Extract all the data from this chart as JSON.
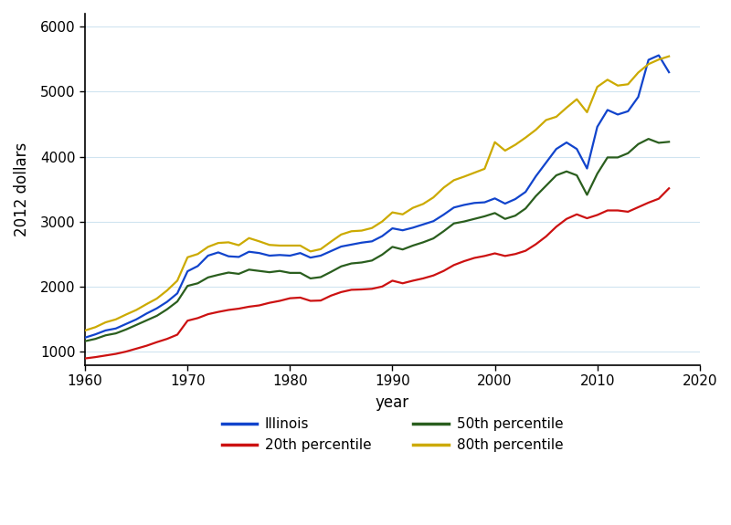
{
  "title": "",
  "xlabel": "year",
  "ylabel": "2012 dollars",
  "xlim": [
    1960,
    2020
  ],
  "ylim": [
    800,
    6200
  ],
  "yticks": [
    1000,
    2000,
    3000,
    4000,
    5000,
    6000
  ],
  "xticks": [
    1960,
    1970,
    1980,
    1990,
    2000,
    2010,
    2020
  ],
  "series_order": [
    "Illinois",
    "20th percentile",
    "50th percentile",
    "80th percentile"
  ],
  "series": {
    "Illinois": {
      "color": "#1144cc",
      "linewidth": 1.6,
      "years": [
        1960,
        1961,
        1962,
        1963,
        1964,
        1965,
        1966,
        1967,
        1968,
        1969,
        1970,
        1971,
        1972,
        1973,
        1974,
        1975,
        1976,
        1977,
        1978,
        1979,
        1980,
        1981,
        1982,
        1983,
        1984,
        1985,
        1986,
        1987,
        1988,
        1989,
        1990,
        1991,
        1992,
        1993,
        1994,
        1995,
        1996,
        1997,
        1998,
        1999,
        2000,
        2001,
        2002,
        2003,
        2004,
        2005,
        2006,
        2007,
        2008,
        2009,
        2010,
        2011,
        2012,
        2013,
        2014,
        2015,
        2016,
        2017
      ],
      "values": [
        1220,
        1270,
        1330,
        1360,
        1430,
        1500,
        1590,
        1670,
        1770,
        1900,
        2240,
        2320,
        2480,
        2530,
        2470,
        2460,
        2540,
        2520,
        2480,
        2490,
        2480,
        2520,
        2450,
        2480,
        2550,
        2620,
        2650,
        2680,
        2700,
        2780,
        2900,
        2870,
        2910,
        2960,
        3010,
        3110,
        3220,
        3260,
        3290,
        3300,
        3360,
        3280,
        3350,
        3460,
        3700,
        3910,
        4120,
        4220,
        4120,
        3820,
        4460,
        4720,
        4650,
        4700,
        4920,
        5490,
        5560,
        5300
      ]
    },
    "20th percentile": {
      "color": "#cc1111",
      "linewidth": 1.6,
      "years": [
        1960,
        1961,
        1962,
        1963,
        1964,
        1965,
        1966,
        1967,
        1968,
        1969,
        1970,
        1971,
        1972,
        1973,
        1974,
        1975,
        1976,
        1977,
        1978,
        1979,
        1980,
        1981,
        1982,
        1983,
        1984,
        1985,
        1986,
        1987,
        1988,
        1989,
        1990,
        1991,
        1992,
        1993,
        1994,
        1995,
        1996,
        1997,
        1998,
        1999,
        2000,
        2001,
        2002,
        2003,
        2004,
        2005,
        2006,
        2007,
        2008,
        2009,
        2010,
        2011,
        2012,
        2013,
        2014,
        2015,
        2016,
        2017
      ],
      "values": [
        900,
        920,
        945,
        970,
        1005,
        1050,
        1095,
        1150,
        1200,
        1265,
        1480,
        1520,
        1580,
        1615,
        1645,
        1665,
        1695,
        1715,
        1755,
        1785,
        1825,
        1835,
        1785,
        1790,
        1865,
        1920,
        1955,
        1960,
        1970,
        2005,
        2095,
        2055,
        2095,
        2130,
        2175,
        2245,
        2335,
        2395,
        2445,
        2475,
        2515,
        2475,
        2505,
        2555,
        2655,
        2775,
        2925,
        3045,
        3115,
        3055,
        3105,
        3175,
        3175,
        3155,
        3225,
        3295,
        3355,
        3515
      ]
    },
    "50th percentile": {
      "color": "#2a5e1e",
      "linewidth": 1.6,
      "years": [
        1960,
        1961,
        1962,
        1963,
        1964,
        1965,
        1966,
        1967,
        1968,
        1969,
        1970,
        1971,
        1972,
        1973,
        1974,
        1975,
        1976,
        1977,
        1978,
        1979,
        1980,
        1981,
        1982,
        1983,
        1984,
        1985,
        1986,
        1987,
        1988,
        1989,
        1990,
        1991,
        1992,
        1993,
        1994,
        1995,
        1996,
        1997,
        1998,
        1999,
        2000,
        2001,
        2002,
        2003,
        2004,
        2005,
        2006,
        2007,
        2008,
        2009,
        2010,
        2011,
        2012,
        2013,
        2014,
        2015,
        2016,
        2017
      ],
      "values": [
        1165,
        1200,
        1255,
        1285,
        1345,
        1415,
        1485,
        1555,
        1655,
        1775,
        2015,
        2055,
        2145,
        2185,
        2220,
        2200,
        2265,
        2245,
        2225,
        2245,
        2215,
        2215,
        2130,
        2150,
        2230,
        2315,
        2360,
        2375,
        2405,
        2495,
        2615,
        2575,
        2635,
        2685,
        2745,
        2855,
        2975,
        3005,
        3045,
        3085,
        3135,
        3045,
        3095,
        3205,
        3395,
        3555,
        3715,
        3775,
        3715,
        3415,
        3740,
        3990,
        3990,
        4055,
        4195,
        4275,
        4215,
        4230
      ]
    },
    "80th percentile": {
      "color": "#ccaa00",
      "linewidth": 1.6,
      "years": [
        1960,
        1961,
        1962,
        1963,
        1964,
        1965,
        1966,
        1967,
        1968,
        1969,
        1970,
        1971,
        1972,
        1973,
        1974,
        1975,
        1976,
        1977,
        1978,
        1979,
        1980,
        1981,
        1982,
        1983,
        1984,
        1985,
        1986,
        1987,
        1988,
        1989,
        1990,
        1991,
        1992,
        1993,
        1994,
        1995,
        1996,
        1997,
        1998,
        1999,
        2000,
        2001,
        2002,
        2003,
        2004,
        2005,
        2006,
        2007,
        2008,
        2009,
        2010,
        2011,
        2012,
        2013,
        2014,
        2015,
        2016,
        2017
      ],
      "values": [
        1330,
        1380,
        1455,
        1500,
        1575,
        1645,
        1735,
        1820,
        1945,
        2095,
        2455,
        2505,
        2615,
        2675,
        2685,
        2640,
        2750,
        2700,
        2645,
        2635,
        2635,
        2635,
        2545,
        2580,
        2695,
        2805,
        2855,
        2865,
        2905,
        3005,
        3145,
        3115,
        3215,
        3275,
        3375,
        3525,
        3640,
        3695,
        3755,
        3815,
        4225,
        4095,
        4185,
        4295,
        4415,
        4565,
        4615,
        4755,
        4885,
        4685,
        5075,
        5185,
        5095,
        5115,
        5295,
        5425,
        5495,
        5545
      ]
    }
  },
  "legend_entries": [
    "Illinois",
    "20th percentile",
    "50th percentile",
    "80th percentile"
  ],
  "legend_colors": [
    "#1144cc",
    "#cc1111",
    "#2a5e1e",
    "#ccaa00"
  ],
  "background_color": "#ffffff",
  "grid_color": "#d0e4f0",
  "spine_color": "#000000"
}
